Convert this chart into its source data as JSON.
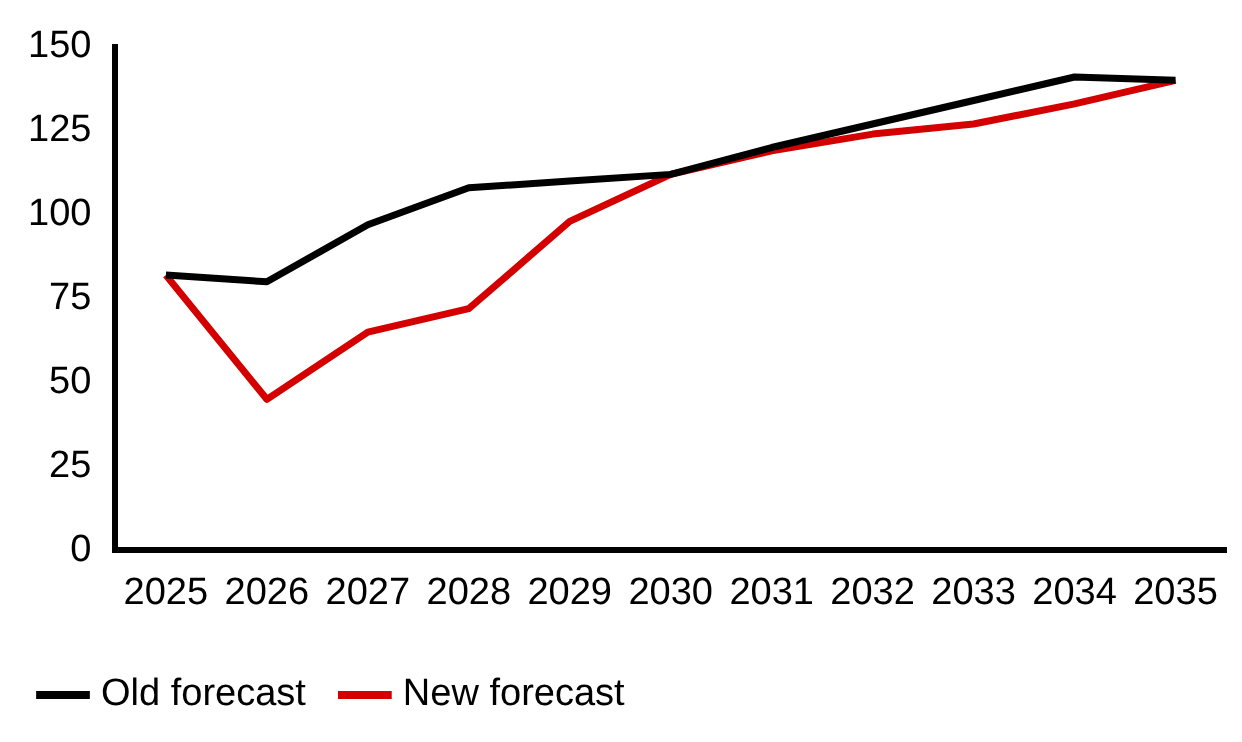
{
  "chart_data": {
    "type": "line",
    "categories": [
      "2025",
      "2026",
      "2027",
      "2028",
      "2029",
      "2030",
      "2031",
      "2032",
      "2033",
      "2034",
      "2035"
    ],
    "series": [
      {
        "name": "Old forecast",
        "color": "#000000",
        "values": [
          82,
          80,
          97,
          108,
          110,
          112,
          120,
          127,
          134,
          141,
          140
        ]
      },
      {
        "name": "New forecast",
        "color": "#d40000",
        "values": [
          82,
          45,
          65,
          72,
          98,
          112,
          119,
          124,
          127,
          133,
          140
        ]
      }
    ],
    "ylim": [
      0,
      150
    ],
    "yticks": [
      0,
      25,
      50,
      75,
      100,
      125,
      150
    ],
    "grid": false,
    "legend": "bottom",
    "marker": "none",
    "line_style": "solid"
  }
}
